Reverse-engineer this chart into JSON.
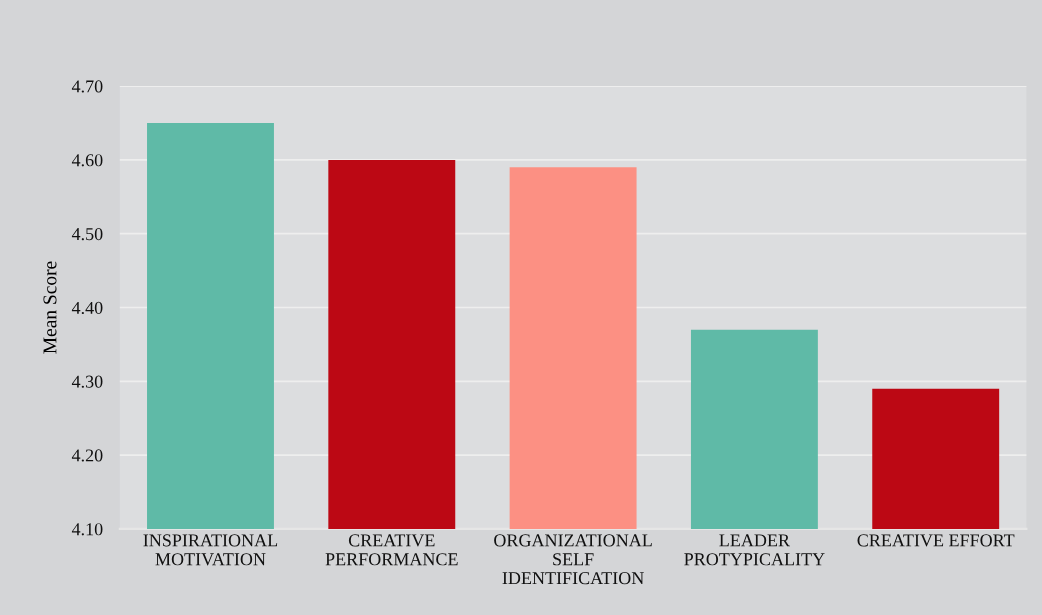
{
  "chart_data": {
    "type": "bar",
    "ylabel": "Mean Score",
    "categories": [
      "INSPIRATIONAL\nMOTIVATION",
      "CREATIVE\nPERFORMANCE",
      "ORGANIZATIONAL\nSELF\nIDENTIFICATION",
      "LEADER\nPROTYPICALITY",
      "CREATIVE EFFORT"
    ],
    "values": [
      4.65,
      4.6,
      4.59,
      4.37,
      4.29
    ],
    "colors": [
      "#5fbaa7",
      "#bc0814",
      "#fc9083",
      "#5fbaa7",
      "#bc0814"
    ],
    "ylim": [
      4.1,
      4.7
    ],
    "yticks": [
      {
        "value": 4.1,
        "label": "4.10"
      },
      {
        "value": 4.2,
        "label": "4.20"
      },
      {
        "value": 4.3,
        "label": "4.30"
      },
      {
        "value": 4.4,
        "label": "4.40"
      },
      {
        "value": 4.5,
        "label": "4.50"
      },
      {
        "value": 4.6,
        "label": "4.60"
      },
      {
        "value": 4.7,
        "label": "4.70"
      }
    ],
    "grid": "y"
  }
}
